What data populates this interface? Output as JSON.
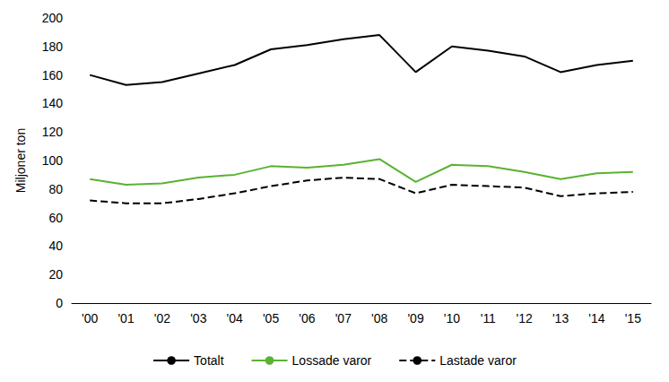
{
  "chart_data": {
    "type": "line",
    "y_label": "Miljoner ton",
    "categories": [
      "'00",
      "'01",
      "'02",
      "'03",
      "'04",
      "'05",
      "'06",
      "'07",
      "'08",
      "'09",
      "'10",
      "'11",
      "'12",
      "'13",
      "'14",
      "'15"
    ],
    "series": [
      {
        "name": "Totalt",
        "color": "#000000",
        "line_style": "solid",
        "values": [
          160,
          153,
          155,
          161,
          167,
          178,
          181,
          185,
          188,
          162,
          180,
          177,
          173,
          162,
          167,
          170
        ]
      },
      {
        "name": "Lossade varor",
        "color": "#5ab232",
        "line_style": "solid",
        "values": [
          87,
          83,
          84,
          88,
          90,
          96,
          95,
          97,
          101,
          85,
          97,
          96,
          92,
          87,
          91,
          92
        ]
      },
      {
        "name": "Lastade varor",
        "color": "#000000",
        "line_style": "dashed",
        "values": [
          72,
          70,
          70,
          73,
          77,
          82,
          86,
          88,
          87,
          77,
          83,
          82,
          81,
          75,
          77,
          78
        ]
      }
    ],
    "ylim": [
      0,
      200
    ],
    "yticks": [
      0,
      20,
      40,
      60,
      80,
      100,
      120,
      140,
      160,
      180,
      200
    ],
    "grid": false,
    "legend": "bottom"
  }
}
